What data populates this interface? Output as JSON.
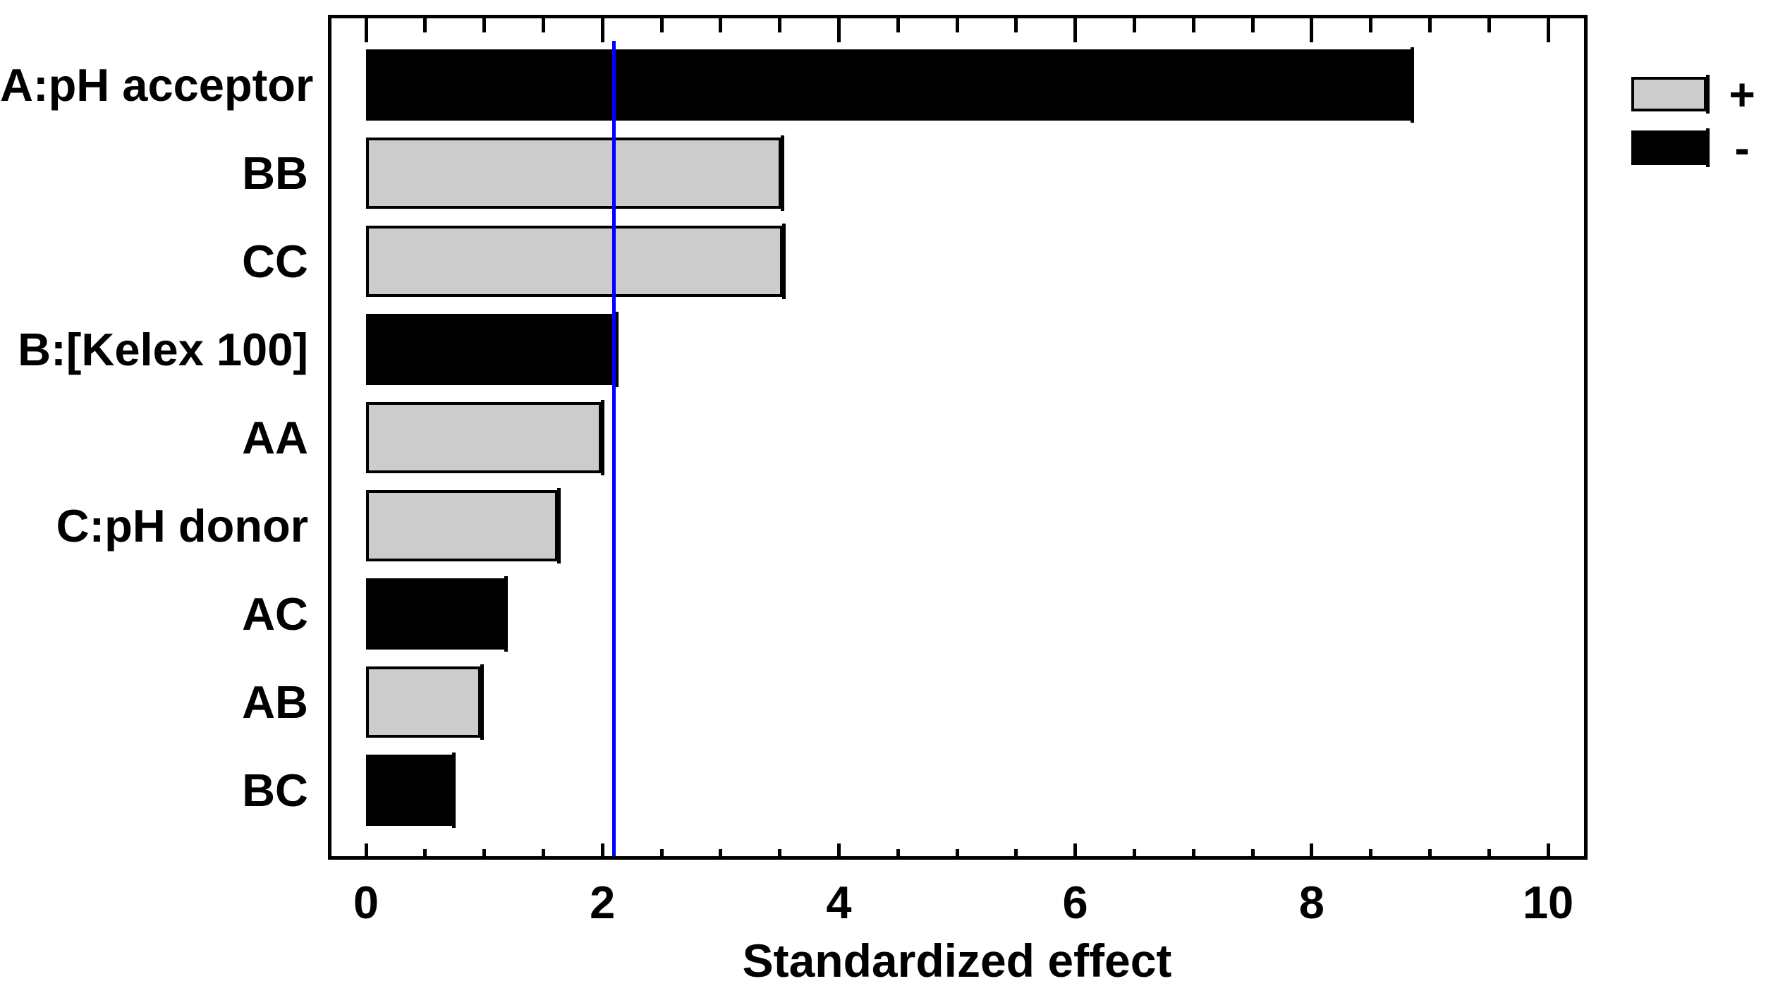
{
  "chart_data": {
    "type": "bar",
    "orientation": "horizontal",
    "title": "",
    "xlabel": "Standardized effect",
    "ylabel": "",
    "x_ticks": [
      0,
      2,
      4,
      6,
      8,
      10
    ],
    "x_minor_tick_step": 0.5,
    "xlim": [
      -0.31,
      10.33
    ],
    "grid": false,
    "categories": [
      "A:pH acceptor",
      "BB",
      "CC",
      "B:[Kelex 100]",
      "AA",
      "C:pH donor",
      "AC",
      "AB",
      "BC"
    ],
    "bars": [
      {
        "label": "A:pH acceptor",
        "value": 8.88,
        "sign": "-"
      },
      {
        "label": "BB",
        "value": 3.55,
        "sign": "+"
      },
      {
        "label": "CC",
        "value": 3.56,
        "sign": "+"
      },
      {
        "label": "B:[Kelex 100]",
        "value": 2.15,
        "sign": "-"
      },
      {
        "label": "AA",
        "value": 2.03,
        "sign": "+"
      },
      {
        "label": "C:pH donor",
        "value": 1.66,
        "sign": "+"
      },
      {
        "label": "AC",
        "value": 1.21,
        "sign": "-"
      },
      {
        "label": "AB",
        "value": 1.01,
        "sign": "+"
      },
      {
        "label": "BC",
        "value": 0.77,
        "sign": "-"
      }
    ],
    "reference_line": {
      "value": 2.1,
      "color": "#0000ff"
    },
    "legend": {
      "position": "top-right",
      "items": [
        {
          "label": "+",
          "color": "#cccccc"
        },
        {
          "label": "-",
          "color": "#000000"
        }
      ]
    },
    "colors": {
      "positive": "#cccccc",
      "negative": "#000000",
      "reference": "#0000ff",
      "axis": "#000000",
      "background": "#ffffff"
    }
  }
}
